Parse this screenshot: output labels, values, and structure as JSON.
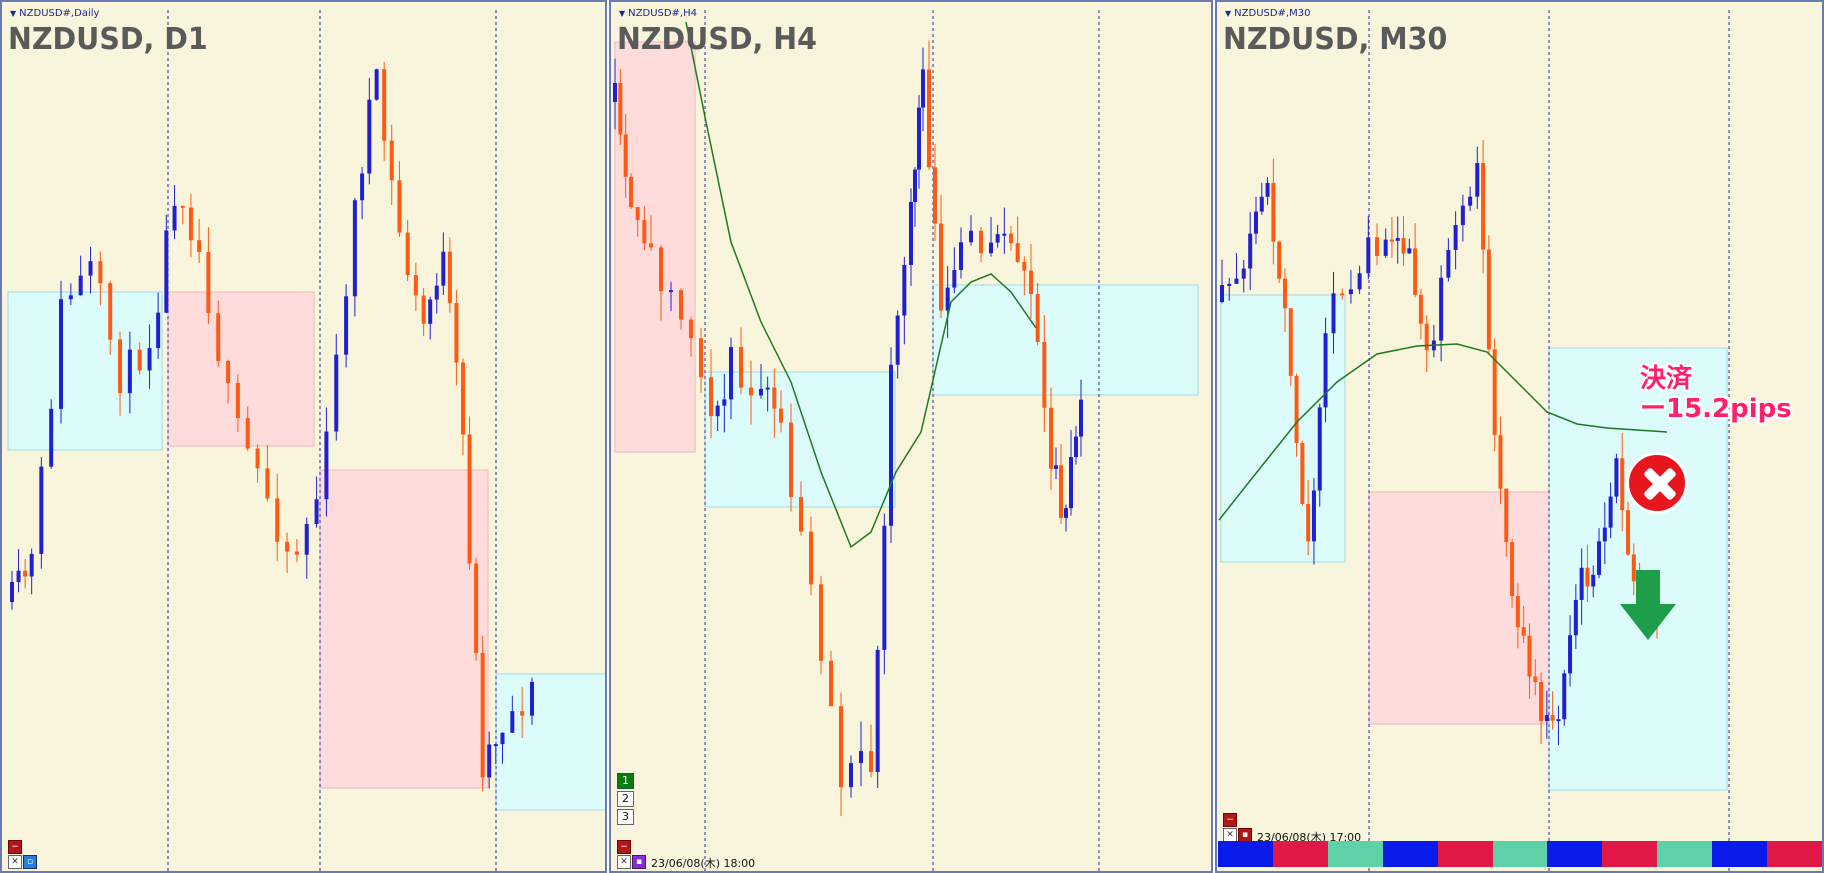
{
  "colors": {
    "panel_bg": "#f8f5dc",
    "up_candle": "#2020d0",
    "down_candle": "#ff5a14",
    "sell_zone": "#ffdcdc",
    "buy_zone": "#dcfbfb",
    "ma_line": "#1e7a1e",
    "annotation": "#ff1f6b",
    "grid": "#2a2a9a"
  },
  "panels": [
    {
      "tag": "NZDUSD#,Daily",
      "title": "NZDUSD, D1",
      "date_label": "",
      "buttons": [
        "minimize",
        "close",
        "settings"
      ]
    },
    {
      "tag": "NZDUSD#,H4",
      "title": "NZDUSD, H4",
      "date_label": "23/06/08(木) 18:00",
      "buttons": [
        "minimize",
        "close",
        "properties"
      ],
      "tab_buttons": [
        {
          "label": "1",
          "active": true
        },
        {
          "label": "2",
          "active": false
        },
        {
          "label": "3",
          "active": false
        }
      ]
    },
    {
      "tag": "NZDUSD#,M30",
      "title": "NZDUSD, M30",
      "date_label": "23/06/08(木) 17:00",
      "buttons": [
        "minimize",
        "close",
        "minimize-alt"
      ]
    }
  ],
  "annotation": {
    "line1": "決済",
    "line2": "ー15.2pips",
    "result_icon": "x-circle-icon",
    "direction_icon": "down-arrow-icon"
  },
  "session_bar": [
    "#0a1ae8",
    "#e01848",
    "#5fd1a8",
    "#0a1ae8",
    "#e01848",
    "#5fd1a8",
    "#0a1ae8",
    "#e01848",
    "#5fd1a8",
    "#0a1ae8",
    "#e01848"
  ]
}
